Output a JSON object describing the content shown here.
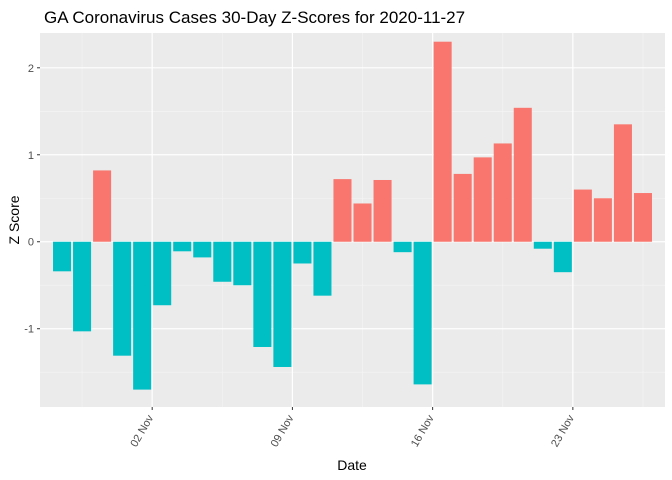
{
  "chart_data": {
    "type": "bar",
    "title": "GA Coronavirus Cases 30-Day Z-Scores for 2020-11-27",
    "xlabel": "Date",
    "ylabel": "Z Score",
    "ylim": [
      -1.9,
      2.4
    ],
    "y_ticks": [
      -1,
      0,
      1,
      2
    ],
    "y_tick_labels": [
      "-1",
      "0",
      "1",
      "2"
    ],
    "x_ticks": [
      {
        "index": 4.5,
        "label": "02 Nov"
      },
      {
        "index": 11.5,
        "label": "09 Nov"
      },
      {
        "index": 18.5,
        "label": "16 Nov"
      },
      {
        "index": 25.5,
        "label": "23 Nov"
      }
    ],
    "values": [
      -0.34,
      -1.03,
      0.82,
      -1.31,
      -1.7,
      -0.73,
      -0.11,
      -0.18,
      -0.46,
      -0.5,
      -1.21,
      -1.44,
      -0.25,
      -0.62,
      0.72,
      0.44,
      0.71,
      -0.12,
      -1.64,
      2.3,
      0.78,
      0.97,
      1.13,
      1.54,
      -0.08,
      -0.35,
      0.6,
      0.5,
      1.35,
      0.56
    ],
    "grid": true,
    "colors": {
      "positive": "#F8766D",
      "negative": "#00BFC4",
      "panel": "#EBEBEB",
      "grid_major": "#FFFFFF",
      "grid_minor": "#F5F5F5"
    }
  }
}
